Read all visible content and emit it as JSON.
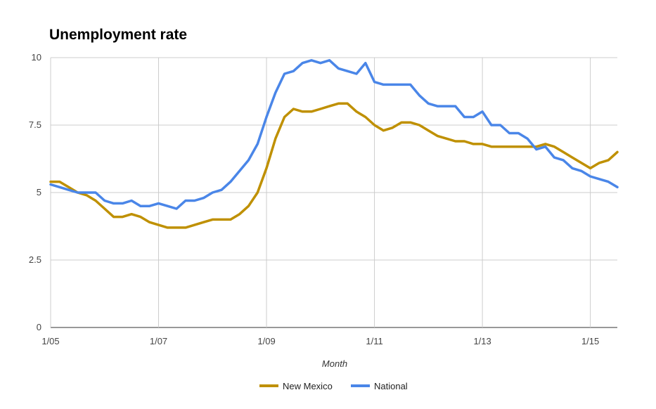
{
  "chart_data": {
    "type": "line",
    "title": "Unemployment rate",
    "xlabel": "Month",
    "ylabel": "",
    "ylim": [
      0,
      10
    ],
    "yticks": [
      "0",
      "2.5",
      "5",
      "7.5",
      "10"
    ],
    "xticks": [
      "1/05",
      "1/07",
      "1/09",
      "1/11",
      "1/13",
      "1/15"
    ],
    "x_range": [
      "2005-01",
      "2015-07"
    ],
    "grid": true,
    "legend": "bottom-center",
    "series": [
      {
        "name": "New Mexico",
        "color": "#bf9000",
        "x": [
          "2005-01",
          "2005-03",
          "2005-05",
          "2005-07",
          "2005-09",
          "2005-11",
          "2006-01",
          "2006-03",
          "2006-05",
          "2006-07",
          "2006-09",
          "2006-11",
          "2007-01",
          "2007-03",
          "2007-05",
          "2007-07",
          "2007-09",
          "2007-11",
          "2008-01",
          "2008-03",
          "2008-05",
          "2008-07",
          "2008-09",
          "2008-11",
          "2009-01",
          "2009-03",
          "2009-05",
          "2009-07",
          "2009-09",
          "2009-11",
          "2010-01",
          "2010-03",
          "2010-05",
          "2010-07",
          "2010-09",
          "2010-11",
          "2011-01",
          "2011-03",
          "2011-05",
          "2011-07",
          "2011-09",
          "2011-11",
          "2012-01",
          "2012-03",
          "2012-05",
          "2012-07",
          "2012-09",
          "2012-11",
          "2013-01",
          "2013-03",
          "2013-05",
          "2013-07",
          "2013-09",
          "2013-11",
          "2014-01",
          "2014-03",
          "2014-05",
          "2014-07",
          "2014-09",
          "2014-11",
          "2015-01",
          "2015-03",
          "2015-05",
          "2015-07"
        ],
        "y": [
          5.4,
          5.4,
          5.2,
          5.0,
          4.9,
          4.7,
          4.4,
          4.1,
          4.1,
          4.2,
          4.1,
          3.9,
          3.8,
          3.7,
          3.7,
          3.7,
          3.8,
          3.9,
          4.0,
          4.0,
          4.0,
          4.2,
          4.5,
          5.0,
          5.9,
          7.0,
          7.8,
          8.1,
          8.0,
          8.0,
          8.1,
          8.2,
          8.3,
          8.3,
          8.0,
          7.8,
          7.5,
          7.3,
          7.4,
          7.6,
          7.6,
          7.5,
          7.3,
          7.1,
          7.0,
          6.9,
          6.9,
          6.8,
          6.8,
          6.7,
          6.7,
          6.7,
          6.7,
          6.7,
          6.7,
          6.8,
          6.7,
          6.5,
          6.3,
          6.1,
          5.9,
          6.1,
          6.2,
          6.5
        ]
      },
      {
        "name": "National",
        "color": "#4a86e8",
        "x": [
          "2005-01",
          "2005-03",
          "2005-05",
          "2005-07",
          "2005-09",
          "2005-11",
          "2006-01",
          "2006-03",
          "2006-05",
          "2006-07",
          "2006-09",
          "2006-11",
          "2007-01",
          "2007-03",
          "2007-05",
          "2007-07",
          "2007-09",
          "2007-11",
          "2008-01",
          "2008-03",
          "2008-05",
          "2008-07",
          "2008-09",
          "2008-11",
          "2009-01",
          "2009-03",
          "2009-05",
          "2009-07",
          "2009-09",
          "2009-11",
          "2010-01",
          "2010-03",
          "2010-05",
          "2010-07",
          "2010-09",
          "2010-11",
          "2011-01",
          "2011-03",
          "2011-05",
          "2011-07",
          "2011-09",
          "2011-11",
          "2012-01",
          "2012-03",
          "2012-05",
          "2012-07",
          "2012-09",
          "2012-11",
          "2013-01",
          "2013-03",
          "2013-05",
          "2013-07",
          "2013-09",
          "2013-11",
          "2014-01",
          "2014-03",
          "2014-05",
          "2014-07",
          "2014-09",
          "2014-11",
          "2015-01",
          "2015-03",
          "2015-05",
          "2015-07"
        ],
        "y": [
          5.3,
          5.2,
          5.1,
          5.0,
          5.0,
          5.0,
          4.7,
          4.6,
          4.6,
          4.7,
          4.5,
          4.5,
          4.6,
          4.5,
          4.4,
          4.7,
          4.7,
          4.8,
          5.0,
          5.1,
          5.4,
          5.8,
          6.2,
          6.8,
          7.8,
          8.7,
          9.4,
          9.5,
          9.8,
          9.9,
          9.8,
          9.9,
          9.6,
          9.5,
          9.4,
          9.8,
          9.1,
          9.0,
          9.0,
          9.0,
          9.0,
          8.6,
          8.3,
          8.2,
          8.2,
          8.2,
          7.8,
          7.8,
          8.0,
          7.5,
          7.5,
          7.2,
          7.2,
          7.0,
          6.6,
          6.7,
          6.3,
          6.2,
          5.9,
          5.8,
          5.6,
          5.5,
          5.4,
          5.2
        ]
      }
    ]
  }
}
